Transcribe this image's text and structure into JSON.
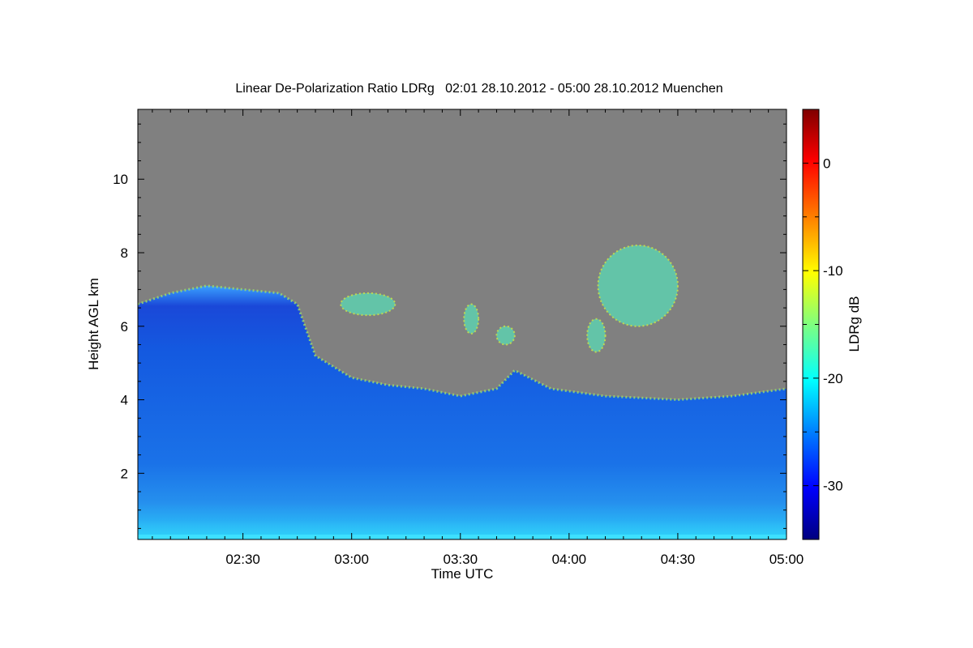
{
  "chart_data": {
    "type": "heatmap",
    "title": "Linear De-Polarization Ratio LDRg   02:01 28.10.2012 - 05:00 28.10.2012 Muenchen",
    "xlabel": "Time UTC",
    "ylabel": "Height AGL km",
    "colorbar_label": "LDRg dB",
    "x_range": [
      "02:01",
      "05:00"
    ],
    "x_ticks": [
      "02:30",
      "03:00",
      "03:30",
      "04:00",
      "04:30",
      "05:00"
    ],
    "y_range": [
      0.2,
      11.9
    ],
    "y_ticks": [
      2,
      4,
      6,
      8,
      10
    ],
    "color_range": [
      -35,
      5
    ],
    "color_ticks": [
      -30,
      -20,
      -10,
      0
    ],
    "colormap": [
      "#00007f",
      "#0000ff",
      "#007fff",
      "#00ffff",
      "#7fff7f",
      "#ffff00",
      "#ff7f00",
      "#ff0000",
      "#7f0000"
    ],
    "no_data_color": "#808080",
    "cloud_top_km": [
      {
        "time": "02:01",
        "top": 6.6
      },
      {
        "time": "02:10",
        "top": 6.9
      },
      {
        "time": "02:20",
        "top": 7.1
      },
      {
        "time": "02:30",
        "top": 7.0
      },
      {
        "time": "02:40",
        "top": 6.9
      },
      {
        "time": "02:45",
        "top": 6.6
      },
      {
        "time": "02:50",
        "top": 5.2
      },
      {
        "time": "03:00",
        "top": 4.6
      },
      {
        "time": "03:10",
        "top": 4.4
      },
      {
        "time": "03:20",
        "top": 4.3
      },
      {
        "time": "03:30",
        "top": 4.1
      },
      {
        "time": "03:40",
        "top": 4.3
      },
      {
        "time": "03:45",
        "top": 4.8
      },
      {
        "time": "03:55",
        "top": 4.3
      },
      {
        "time": "04:10",
        "top": 4.1
      },
      {
        "time": "04:30",
        "top": 4.0
      },
      {
        "time": "04:45",
        "top": 4.1
      },
      {
        "time": "05:00",
        "top": 4.3
      }
    ],
    "cloud_patches": [
      {
        "t_start": "02:57",
        "t_end": "03:12",
        "h_low": 6.3,
        "h_high": 6.9
      },
      {
        "t_start": "03:31",
        "t_end": "03:35",
        "h_low": 5.8,
        "h_high": 6.6
      },
      {
        "t_start": "03:40",
        "t_end": "03:45",
        "h_low": 5.5,
        "h_high": 6.0
      },
      {
        "t_start": "04:05",
        "t_end": "04:10",
        "h_low": 5.3,
        "h_high": 6.2
      },
      {
        "t_start": "04:08",
        "t_end": "04:30",
        "h_low": 6.0,
        "h_high": 8.2
      }
    ]
  }
}
